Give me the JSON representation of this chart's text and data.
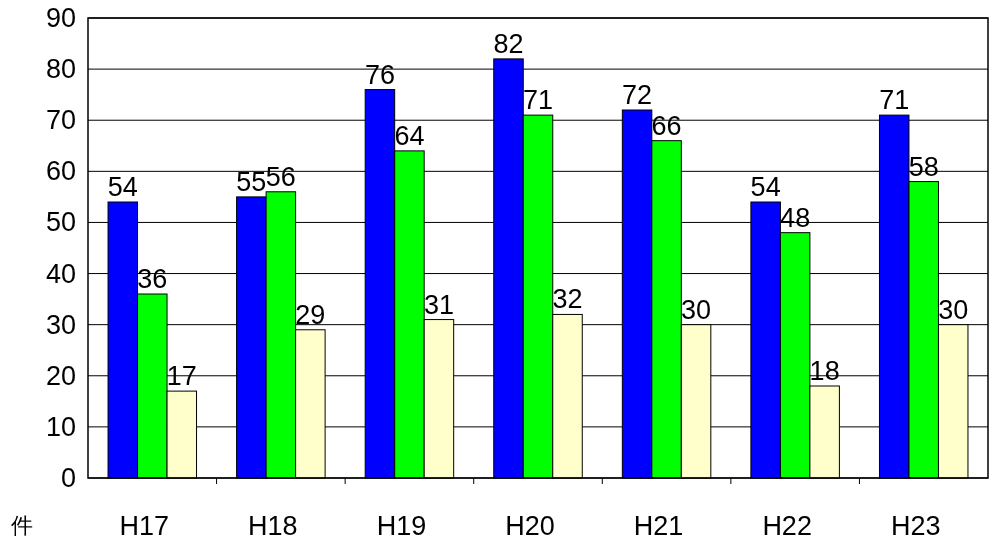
{
  "chart_data": {
    "type": "bar",
    "ylabel": "件",
    "categories": [
      "H17",
      "H18",
      "H19",
      "H20",
      "H21",
      "H22",
      "H23"
    ],
    "series": [
      {
        "color": "#0000ff",
        "values": [
          54,
          55,
          76,
          82,
          72,
          54,
          71
        ]
      },
      {
        "color": "#00ff00",
        "values": [
          36,
          56,
          64,
          71,
          66,
          48,
          58
        ]
      },
      {
        "color": "#ffffcc",
        "values": [
          17,
          29,
          31,
          32,
          30,
          18,
          30
        ]
      }
    ],
    "ylim": [
      0,
      90
    ],
    "yticks": [
      0,
      10,
      20,
      30,
      40,
      50,
      60,
      70,
      80,
      90
    ],
    "grid": "y",
    "data_labels": true
  }
}
